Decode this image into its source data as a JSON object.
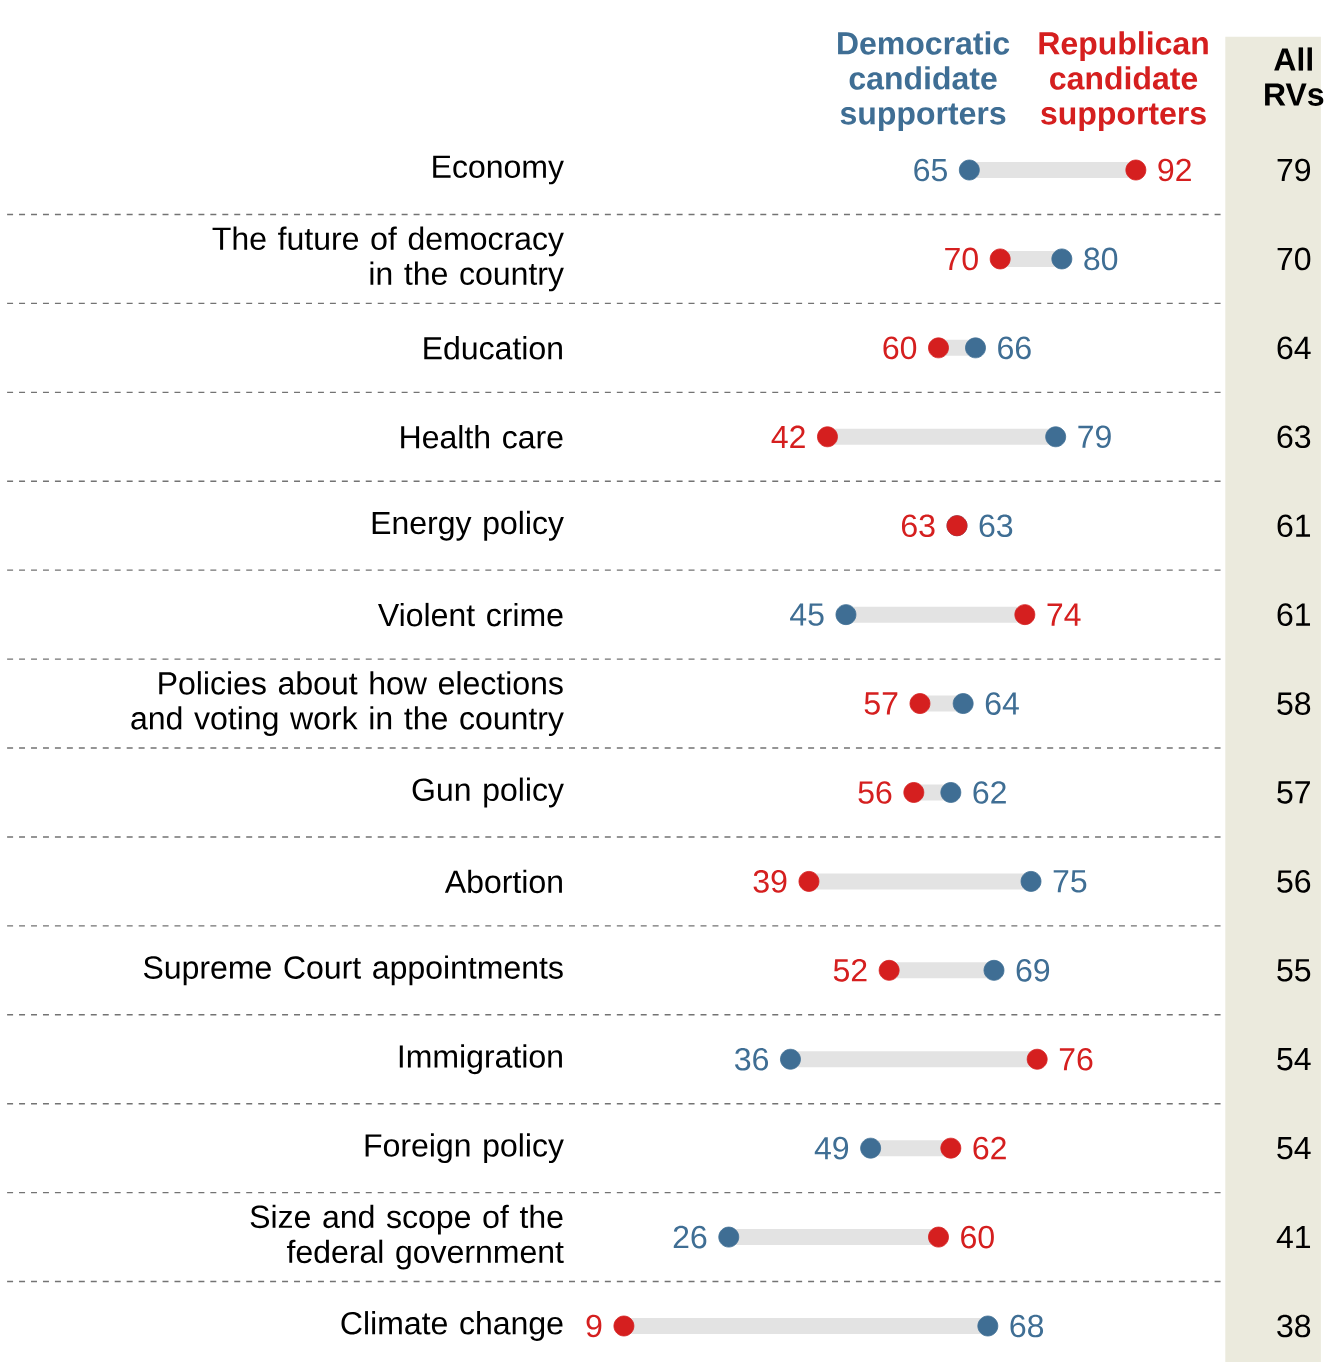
{
  "chart_data": {
    "type": "scatter",
    "orientation": "horizontal",
    "marker": "circle",
    "data_labels": true,
    "legend": "top",
    "tick_labels": "y",
    "categories": [
      "Economy",
      "The future of democracy in the country",
      "Education",
      "Health care",
      "Energy policy",
      "Violent crime",
      "Policies about how elections and voting work in the country",
      "Gun policy",
      "Abortion",
      "Supreme Court appointments",
      "Immigration",
      "Foreign policy",
      "Size and scope of the federal government",
      "Climate change"
    ],
    "series": [
      {
        "name": "Democratic candidate supporters",
        "color": "#3f6e94",
        "values": [
          65,
          80,
          66,
          79,
          63,
          45,
          64,
          62,
          75,
          69,
          36,
          49,
          26,
          68
        ]
      },
      {
        "name": "Republican candidate supporters",
        "color": "#d51f1f",
        "values": [
          92,
          70,
          60,
          42,
          63,
          74,
          57,
          56,
          39,
          52,
          76,
          62,
          60,
          9
        ]
      }
    ],
    "annotations": [
      "All RVs",
      "79",
      "70",
      "64",
      "63",
      "61",
      "61",
      "58",
      "57",
      "56",
      "55",
      "54",
      "54",
      "41",
      "38"
    ]
  }
}
